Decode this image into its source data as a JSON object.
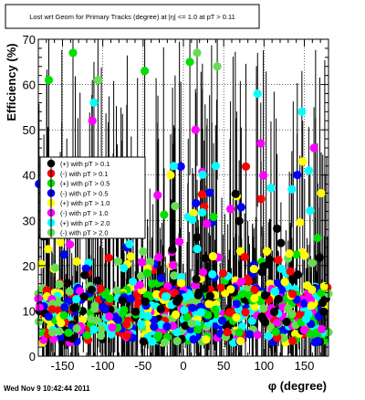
{
  "title_box": {
    "text": "Lost wrt Geom for Primary Tracks (degree) at |η| <= 1.0 at pT > 0.11"
  },
  "timestamp": "Wed Nov  9 10:42:44 2011",
  "colors": {
    "black": "#000000",
    "red": "#ff0000",
    "green": "#00e000",
    "blue": "#0000ff",
    "yellow": "#ffff00",
    "magenta": "#ff00ff",
    "cyan": "#00ffff",
    "lightgreen": "#66dd55"
  },
  "chart_data": {
    "type": "scatter",
    "title": "Lost wrt Geom for Primary Tracks (degree) at |η| <= 1.0 at pT > 0.11",
    "xlabel": "φ (degree)",
    "ylabel": "Efficiency (%)",
    "xlim": [
      -180,
      180
    ],
    "ylim": [
      0,
      70
    ],
    "x_ticks": [
      -150,
      -100,
      -50,
      0,
      50,
      100,
      150
    ],
    "y_ticks": [
      0,
      10,
      20,
      30,
      40,
      50,
      60,
      70
    ],
    "grid": true,
    "legend_position": "left-middle",
    "series": [
      {
        "name": "(+) with pT > 0.1",
        "color": "#000000"
      },
      {
        "name": "(-) with pT > 0.1",
        "color": "#ff0000"
      },
      {
        "name": "(+) with pT > 0.5",
        "color": "#00e000"
      },
      {
        "name": "(-) with pT > 0.5",
        "color": "#0000ff"
      },
      {
        "name": "(+) with pT > 1.0",
        "color": "#ffff00"
      },
      {
        "name": "(-) with pT > 1.0",
        "color": "#ff00ff"
      },
      {
        "name": "(+) with pT > 2.0",
        "color": "#00ffff"
      },
      {
        "name": "(-) with pT > 2.0",
        "color": "#66dd55"
      }
    ],
    "highlight_points": [
      {
        "series": 2,
        "x": -167,
        "y": 61
      },
      {
        "series": 2,
        "x": -137,
        "y": 67
      },
      {
        "series": 7,
        "x": -106,
        "y": 61
      },
      {
        "series": 6,
        "x": -111,
        "y": 56
      },
      {
        "series": 5,
        "x": -113,
        "y": 52
      },
      {
        "series": 2,
        "x": -48,
        "y": 63
      },
      {
        "series": 2,
        "x": 8,
        "y": 65
      },
      {
        "series": 7,
        "x": 17,
        "y": 67
      },
      {
        "series": 7,
        "x": 42,
        "y": 64
      },
      {
        "series": 5,
        "x": 15,
        "y": 50
      },
      {
        "series": 6,
        "x": 92,
        "y": 58
      },
      {
        "series": 6,
        "x": 147,
        "y": 54
      },
      {
        "series": 5,
        "x": 96,
        "y": 47
      },
      {
        "series": 5,
        "x": 162,
        "y": 46
      },
      {
        "series": 4,
        "x": -16,
        "y": 40
      },
      {
        "series": 6,
        "x": 40,
        "y": 42
      },
      {
        "series": 4,
        "x": 171,
        "y": 36
      },
      {
        "series": 0,
        "x": 121,
        "y": 25
      },
      {
        "series": 6,
        "x": -12,
        "y": 42
      },
      {
        "series": 4,
        "x": 148,
        "y": 43
      }
    ]
  }
}
